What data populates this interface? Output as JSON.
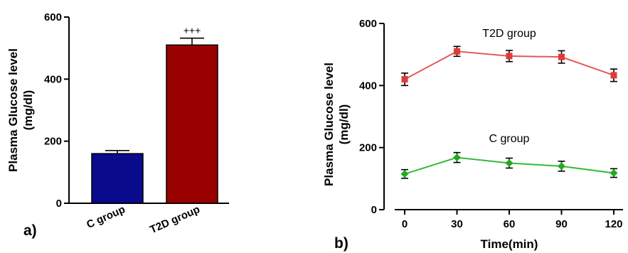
{
  "chart_data": [
    {
      "type": "bar",
      "panel_label": "a)",
      "categories": [
        "C group",
        "T2D group"
      ],
      "values": [
        160,
        510
      ],
      "errors": [
        10,
        22
      ],
      "annotations": [
        "",
        "+++"
      ],
      "colors": [
        "#0a0a8c",
        "#990000"
      ],
      "ylabel_line1": "Plasma Glucose level",
      "ylabel_line2": "(mg/dl)",
      "ylim": [
        0,
        600
      ],
      "yticks": [
        0,
        200,
        400,
        600
      ],
      "grid": false
    },
    {
      "type": "line",
      "panel_label": "b)",
      "x": [
        0,
        30,
        60,
        90,
        120
      ],
      "xticks": [
        0,
        30,
        60,
        90,
        120
      ],
      "xlabel": "Time(min)",
      "ylabel_line1": "Plasma Glucose level",
      "ylabel_line2": "(mg/dl)",
      "ylim": [
        0,
        600
      ],
      "yticks": [
        0,
        200,
        400,
        600
      ],
      "grid": false,
      "series": [
        {
          "name": "T2D group",
          "values": [
            420,
            510,
            495,
            492,
            433
          ],
          "errors": [
            20,
            16,
            18,
            20,
            20
          ],
          "color": "#e05a5a",
          "marker_color": "#e03a3a",
          "marker": "square"
        },
        {
          "name": "C group",
          "values": [
            115,
            168,
            150,
            140,
            118
          ],
          "errors": [
            14,
            16,
            16,
            16,
            14
          ],
          "color": "#33bb33",
          "marker_color": "#22aa22",
          "marker": "diamond"
        }
      ]
    }
  ]
}
